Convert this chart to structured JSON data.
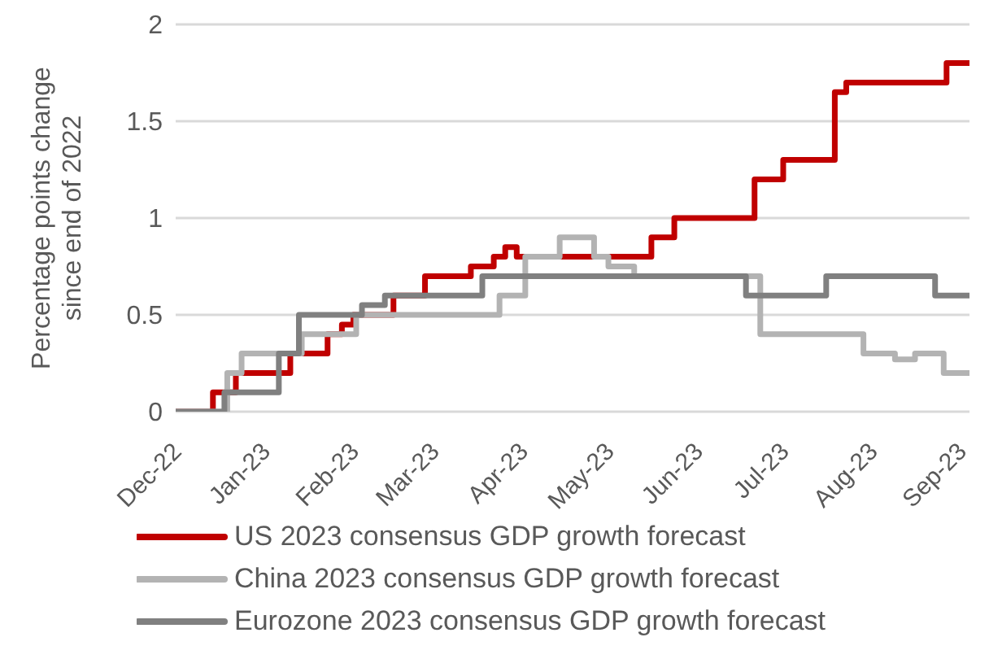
{
  "chart_data": {
    "type": "line",
    "ylabel": "Percentage points change since end of 2022",
    "xlim": [
      "2022-12-01",
      "2023-09-04"
    ],
    "xticks": [
      {
        "value": "2022-12-01",
        "label": "Dec-22"
      },
      {
        "value": "2023-01-01",
        "label": "Jan-23"
      },
      {
        "value": "2023-02-01",
        "label": "Feb-23"
      },
      {
        "value": "2023-03-01",
        "label": "Mar-23"
      },
      {
        "value": "2023-04-01",
        "label": "Apr-23"
      },
      {
        "value": "2023-05-01",
        "label": "May-23"
      },
      {
        "value": "2023-06-01",
        "label": "Jun-23"
      },
      {
        "value": "2023-07-01",
        "label": "Jul-23"
      },
      {
        "value": "2023-08-01",
        "label": "Aug-23"
      },
      {
        "value": "2023-09-01",
        "label": "Sep-23"
      }
    ],
    "ylim": [
      0,
      2
    ],
    "yticks": [
      0,
      0.5,
      1,
      1.5,
      2
    ],
    "grid": "y",
    "legend": "bottom",
    "series": [
      {
        "name": "US 2023 consensus GDP growth forecast",
        "type": "step",
        "color": "#c00000",
        "x": [
          "2022-12-01",
          "2022-12-14",
          "2022-12-22",
          "2023-01-10",
          "2023-01-23",
          "2023-01-28",
          "2023-02-01",
          "2023-02-15",
          "2023-02-26",
          "2023-03-14",
          "2023-03-22",
          "2023-03-26",
          "2023-03-30",
          "2023-05-16",
          "2023-05-24",
          "2023-06-21",
          "2023-07-01",
          "2023-07-19",
          "2023-07-23",
          "2023-08-27",
          "2023-09-04"
        ],
        "values": [
          0,
          0.1,
          0.2,
          0.3,
          0.4,
          0.45,
          0.5,
          0.6,
          0.7,
          0.75,
          0.8,
          0.85,
          0.8,
          0.9,
          1.0,
          1.2,
          1.3,
          1.65,
          1.7,
          1.8,
          1.8
        ]
      },
      {
        "name": "China 2023 consensus GDP growth forecast",
        "type": "step",
        "color": "#b3b3b3",
        "x": [
          "2022-12-01",
          "2022-12-19",
          "2022-12-24",
          "2023-01-14",
          "2023-02-02",
          "2023-03-24",
          "2023-04-02",
          "2023-04-14",
          "2023-04-26",
          "2023-05-01",
          "2023-05-10",
          "2023-06-23",
          "2023-07-29",
          "2023-08-09",
          "2023-08-16",
          "2023-08-26",
          "2023-09-04"
        ],
        "values": [
          0,
          0.2,
          0.3,
          0.4,
          0.5,
          0.6,
          0.8,
          0.9,
          0.8,
          0.75,
          0.7,
          0.4,
          0.3,
          0.27,
          0.3,
          0.2,
          0.2
        ]
      },
      {
        "name": "Eurozone 2023 consensus GDP growth forecast",
        "type": "step",
        "color": "#808080",
        "x": [
          "2022-12-01",
          "2022-12-18",
          "2023-01-06",
          "2023-01-13",
          "2023-02-04",
          "2023-02-12",
          "2023-03-18",
          "2023-06-18",
          "2023-07-16",
          "2023-08-23",
          "2023-09-04"
        ],
        "values": [
          0,
          0.1,
          0.3,
          0.5,
          0.55,
          0.6,
          0.7,
          0.6,
          0.7,
          0.6,
          0.6
        ]
      }
    ]
  }
}
